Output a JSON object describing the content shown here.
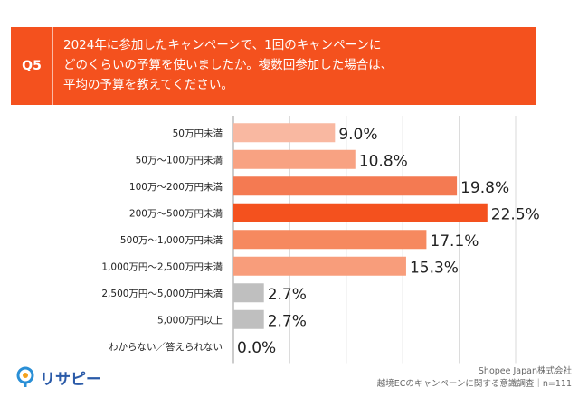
{
  "header": {
    "q_label": "Q5",
    "question": "2024年に参加したキャンペーンで、1回のキャンペーンに\nどのくらいの予算を使いましたか。複数回参加した場合は、\n平均の予算を教えてください。"
  },
  "chart_data": {
    "type": "bar",
    "orientation": "horizontal",
    "categories": [
      "50万円未満",
      "50万～100万円未満",
      "100万～200万円未満",
      "200万～500万円未満",
      "500万～1,000万円未満",
      "1,000万円～2,500万円未満",
      "2,500万円～5,000万円未満",
      "5,000万円以上",
      "わからない／答えられない"
    ],
    "values": [
      9.0,
      10.8,
      19.8,
      22.5,
      17.1,
      15.3,
      2.7,
      2.7,
      0.0
    ],
    "value_labels": [
      "9.0%",
      "10.8%",
      "19.8%",
      "22.5%",
      "17.1%",
      "15.3%",
      "2.7%",
      "2.7%",
      "0.0%"
    ],
    "bar_colors": [
      "#f9b8a1",
      "#f8a282",
      "#f47a52",
      "#f4511e",
      "#f6895f",
      "#f89d7b",
      "#bfbfbf",
      "#bfbfbf",
      "#bfbfbf"
    ],
    "xlim": [
      0,
      25
    ],
    "grid": true,
    "unit": "%"
  },
  "footer": {
    "company": "Shopee Japan株式会社",
    "survey": "越境ECのキャンペーンに関する意識調査｜n=111"
  },
  "logo": {
    "text": "リサピー",
    "icon": "risapi-logo-icon"
  },
  "colors": {
    "accent": "#f4511e",
    "grid": "#d9d9d9"
  }
}
